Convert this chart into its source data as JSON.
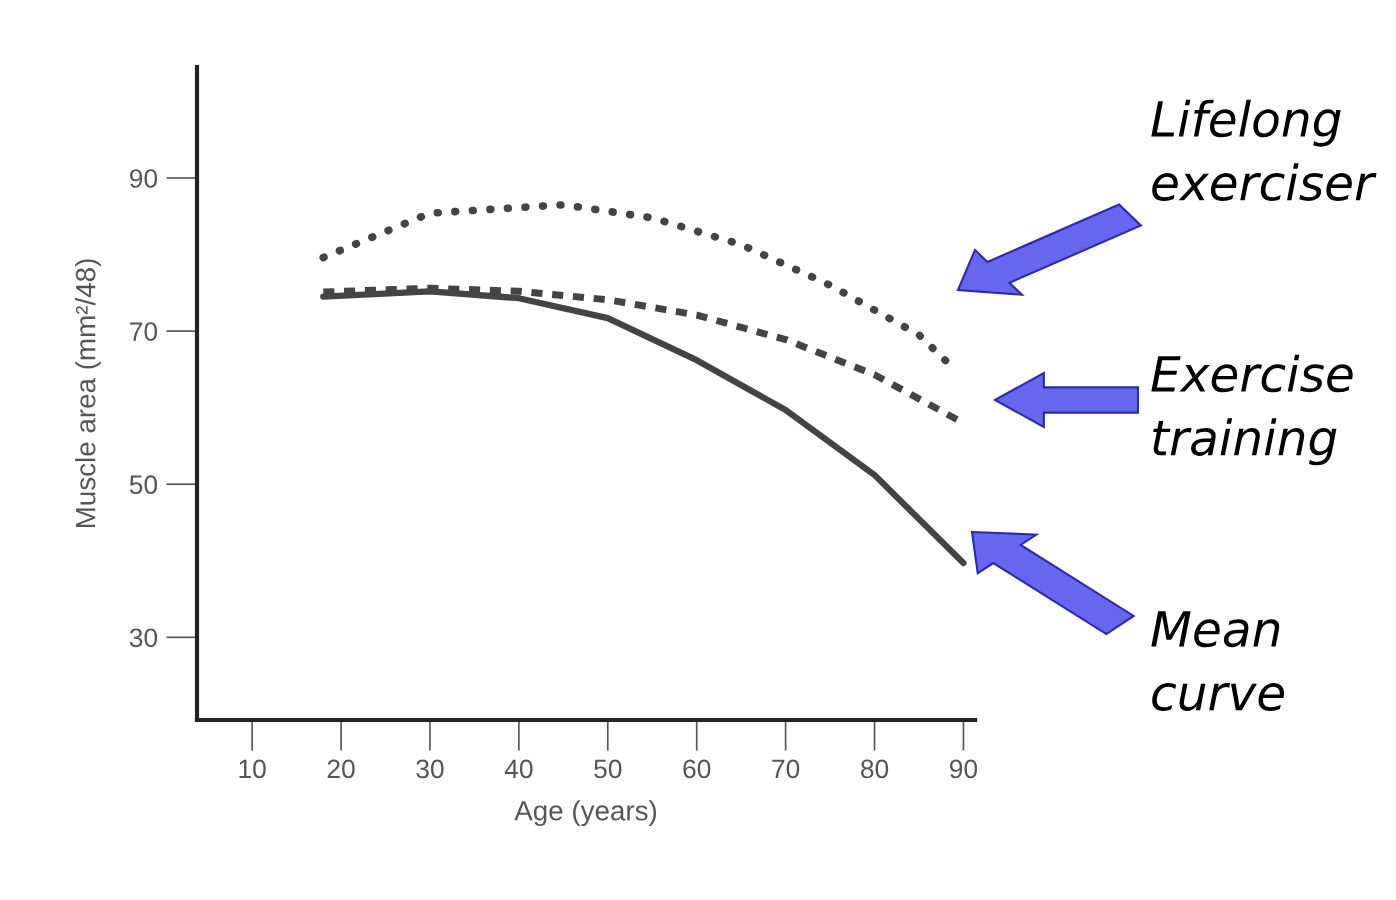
{
  "chart_data": {
    "type": "line",
    "xlabel": "Age (years)",
    "ylabel": "Muscle area (mm²/48)",
    "xlim": [
      3.8,
      91.3
    ],
    "ylim": [
      19.2,
      104.5
    ],
    "xticks": [
      10,
      20,
      30,
      40,
      50,
      60,
      70,
      80,
      90
    ],
    "yticks": [
      30,
      50,
      70,
      90
    ],
    "grid": false,
    "legend": false,
    "series": [
      {
        "name": "Lifelong exerciser",
        "color": "#444444",
        "line_style": "dotted",
        "x": [
          18,
          30,
          45,
          55,
          65,
          75,
          85,
          89
        ],
        "values": [
          79.6,
          85.4,
          86.5,
          84.8,
          81.3,
          76.0,
          69.5,
          65.0
        ]
      },
      {
        "name": "Exercise training",
        "color": "#444444",
        "line_style": "dashed",
        "x": [
          18,
          30,
          40,
          50,
          60,
          70,
          80,
          90
        ],
        "values": [
          75.1,
          75.6,
          75.2,
          74.1,
          72.1,
          68.9,
          64.3,
          58.0
        ]
      },
      {
        "name": "Mean curve",
        "color": "#444444",
        "line_style": "solid",
        "x": [
          18,
          30,
          40,
          50,
          60,
          70,
          80,
          90
        ],
        "values": [
          74.5,
          75.2,
          74.3,
          71.7,
          66.2,
          59.7,
          51.2,
          39.7
        ]
      }
    ]
  }
}
